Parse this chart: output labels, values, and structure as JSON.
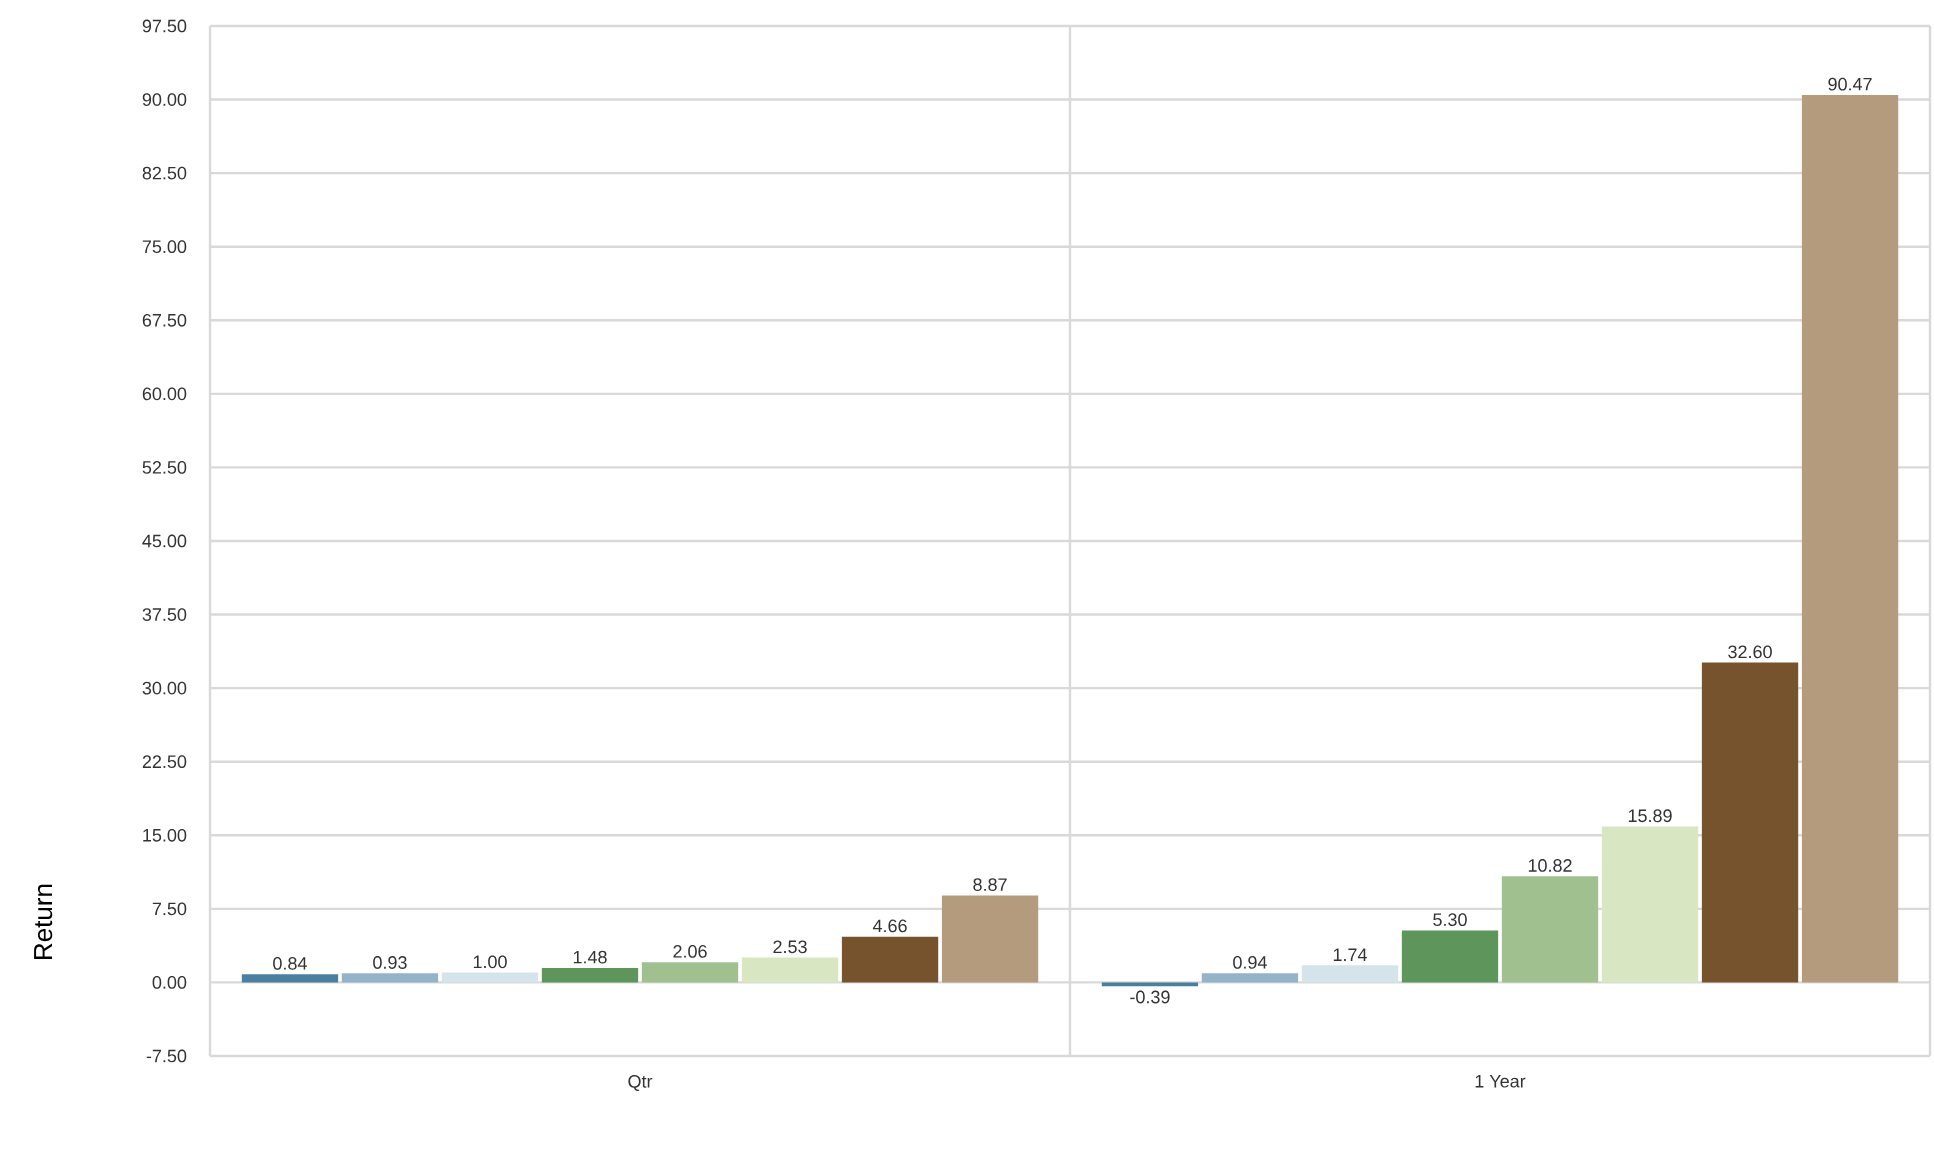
{
  "chart_data": {
    "type": "bar",
    "ylabel": "Return",
    "categories": [
      "Qtr",
      "1 Year"
    ],
    "series": [
      {
        "color": "#4a7fa0",
        "values": [
          0.84,
          -0.39
        ],
        "value_labels": [
          "0.84",
          "-0.39"
        ]
      },
      {
        "color": "#93b3c8",
        "values": [
          0.93,
          0.94
        ],
        "value_labels": [
          "0.93",
          "0.94"
        ]
      },
      {
        "color": "#d5e3ea",
        "values": [
          1.0,
          1.74
        ],
        "value_labels": [
          "1.00",
          "1.74"
        ]
      },
      {
        "color": "#5e955a",
        "values": [
          1.48,
          5.3
        ],
        "value_labels": [
          "1.48",
          "5.30"
        ]
      },
      {
        "color": "#a0c08f",
        "values": [
          2.06,
          10.82
        ],
        "value_labels": [
          "2.06",
          "10.82"
        ]
      },
      {
        "color": "#d8e7c1",
        "values": [
          2.53,
          15.89
        ],
        "value_labels": [
          "2.53",
          "15.89"
        ]
      },
      {
        "color": "#76532c",
        "values": [
          4.66,
          32.6
        ],
        "value_labels": [
          "4.66",
          "32.60"
        ]
      },
      {
        "color": "#b59b7e",
        "values": [
          8.87,
          90.47
        ],
        "value_labels": [
          "8.87",
          "90.47"
        ]
      }
    ],
    "ylim": [
      -7.5,
      97.5
    ],
    "yticks": [
      {
        "value": -7.5,
        "label": "-7.50"
      },
      {
        "value": 0,
        "label": "0.00"
      },
      {
        "value": 7.5,
        "label": "7.50"
      },
      {
        "value": 15,
        "label": "15.00"
      },
      {
        "value": 22.5,
        "label": "22.50"
      },
      {
        "value": 30,
        "label": "30.00"
      },
      {
        "value": 37.5,
        "label": "37.50"
      },
      {
        "value": 45,
        "label": "45.00"
      },
      {
        "value": 52.5,
        "label": "52.50"
      },
      {
        "value": 60,
        "label": "60.00"
      },
      {
        "value": 67.5,
        "label": "67.50"
      },
      {
        "value": 75,
        "label": "75.00"
      },
      {
        "value": 82.5,
        "label": "82.50"
      },
      {
        "value": 90,
        "label": "90.00"
      },
      {
        "value": 97.5,
        "label": "97.50"
      }
    ],
    "grid": true
  }
}
